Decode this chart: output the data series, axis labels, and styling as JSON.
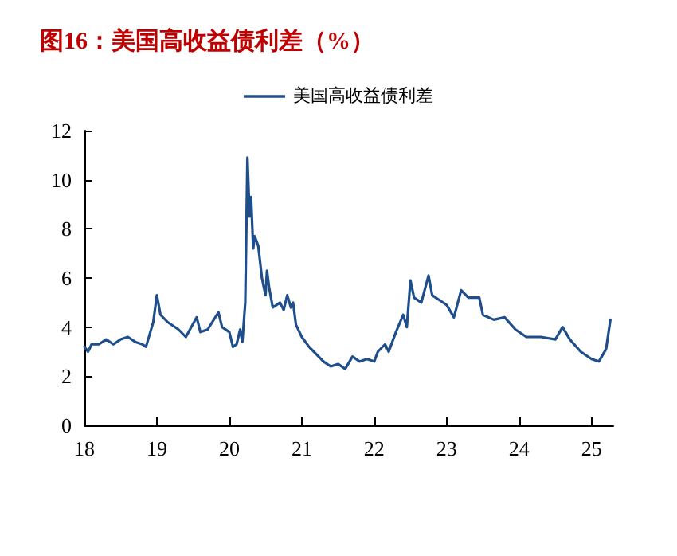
{
  "chart_data": {
    "type": "line",
    "title": "图16：美国高收益债利差（%）",
    "x": [
      2018.0,
      2018.05,
      2018.1,
      2018.2,
      2018.3,
      2018.4,
      2018.5,
      2018.6,
      2018.7,
      2018.8,
      2018.85,
      2018.9,
      2018.95,
      2019.0,
      2019.05,
      2019.15,
      2019.3,
      2019.4,
      2019.55,
      2019.6,
      2019.7,
      2019.85,
      2019.9,
      2020.0,
      2020.05,
      2020.1,
      2020.15,
      2020.18,
      2020.22,
      2020.25,
      2020.28,
      2020.3,
      2020.33,
      2020.35,
      2020.4,
      2020.45,
      2020.5,
      2020.52,
      2020.55,
      2020.6,
      2020.7,
      2020.75,
      2020.8,
      2020.85,
      2020.88,
      2020.92,
      2021.0,
      2021.1,
      2021.2,
      2021.3,
      2021.4,
      2021.5,
      2021.6,
      2021.7,
      2021.8,
      2021.9,
      2022.0,
      2022.05,
      2022.15,
      2022.2,
      2022.3,
      2022.4,
      2022.45,
      2022.5,
      2022.55,
      2022.65,
      2022.75,
      2022.8,
      2022.9,
      2023.0,
      2023.1,
      2023.2,
      2023.3,
      2023.45,
      2023.5,
      2023.65,
      2023.8,
      2023.95,
      2024.1,
      2024.3,
      2024.5,
      2024.6,
      2024.7,
      2024.85,
      2025.0,
      2025.1,
      2025.2,
      2025.26
    ],
    "series": [
      {
        "name": "美国高收益债利差",
        "color": "#1f4e8c",
        "values": [
          3.2,
          3.0,
          3.3,
          3.3,
          3.5,
          3.3,
          3.5,
          3.6,
          3.4,
          3.3,
          3.2,
          3.7,
          4.2,
          5.3,
          4.5,
          4.2,
          3.9,
          3.6,
          4.4,
          3.8,
          3.9,
          4.6,
          4.0,
          3.8,
          3.2,
          3.3,
          3.9,
          3.4,
          5.0,
          10.9,
          8.5,
          9.3,
          7.2,
          7.7,
          7.3,
          6.0,
          5.3,
          6.3,
          5.6,
          4.8,
          5.0,
          4.7,
          5.3,
          4.8,
          5.0,
          4.1,
          3.6,
          3.2,
          2.9,
          2.6,
          2.4,
          2.5,
          2.3,
          2.8,
          2.6,
          2.7,
          2.6,
          3.0,
          3.3,
          3.0,
          3.8,
          4.5,
          4.0,
          5.9,
          5.2,
          5.0,
          6.1,
          5.3,
          5.1,
          4.9,
          4.4,
          5.5,
          5.2,
          5.2,
          4.5,
          4.3,
          4.4,
          3.9,
          3.6,
          3.6,
          3.5,
          4.0,
          3.5,
          3.0,
          2.7,
          2.6,
          3.1,
          4.3
        ]
      }
    ],
    "xlim": [
      2018,
      2025.3
    ],
    "xticks": [
      {
        "value": 2018,
        "label": "18"
      },
      {
        "value": 2019,
        "label": "19"
      },
      {
        "value": 2020,
        "label": "20"
      },
      {
        "value": 2021,
        "label": "21"
      },
      {
        "value": 2022,
        "label": "22"
      },
      {
        "value": 2023,
        "label": "23"
      },
      {
        "value": 2024,
        "label": "24"
      },
      {
        "value": 2025,
        "label": "25"
      }
    ],
    "ylim": [
      0,
      12
    ],
    "yticks": [
      0,
      2,
      4,
      6,
      8,
      10,
      12
    ],
    "legend": "top",
    "marker": "none",
    "line_style": "solid"
  }
}
